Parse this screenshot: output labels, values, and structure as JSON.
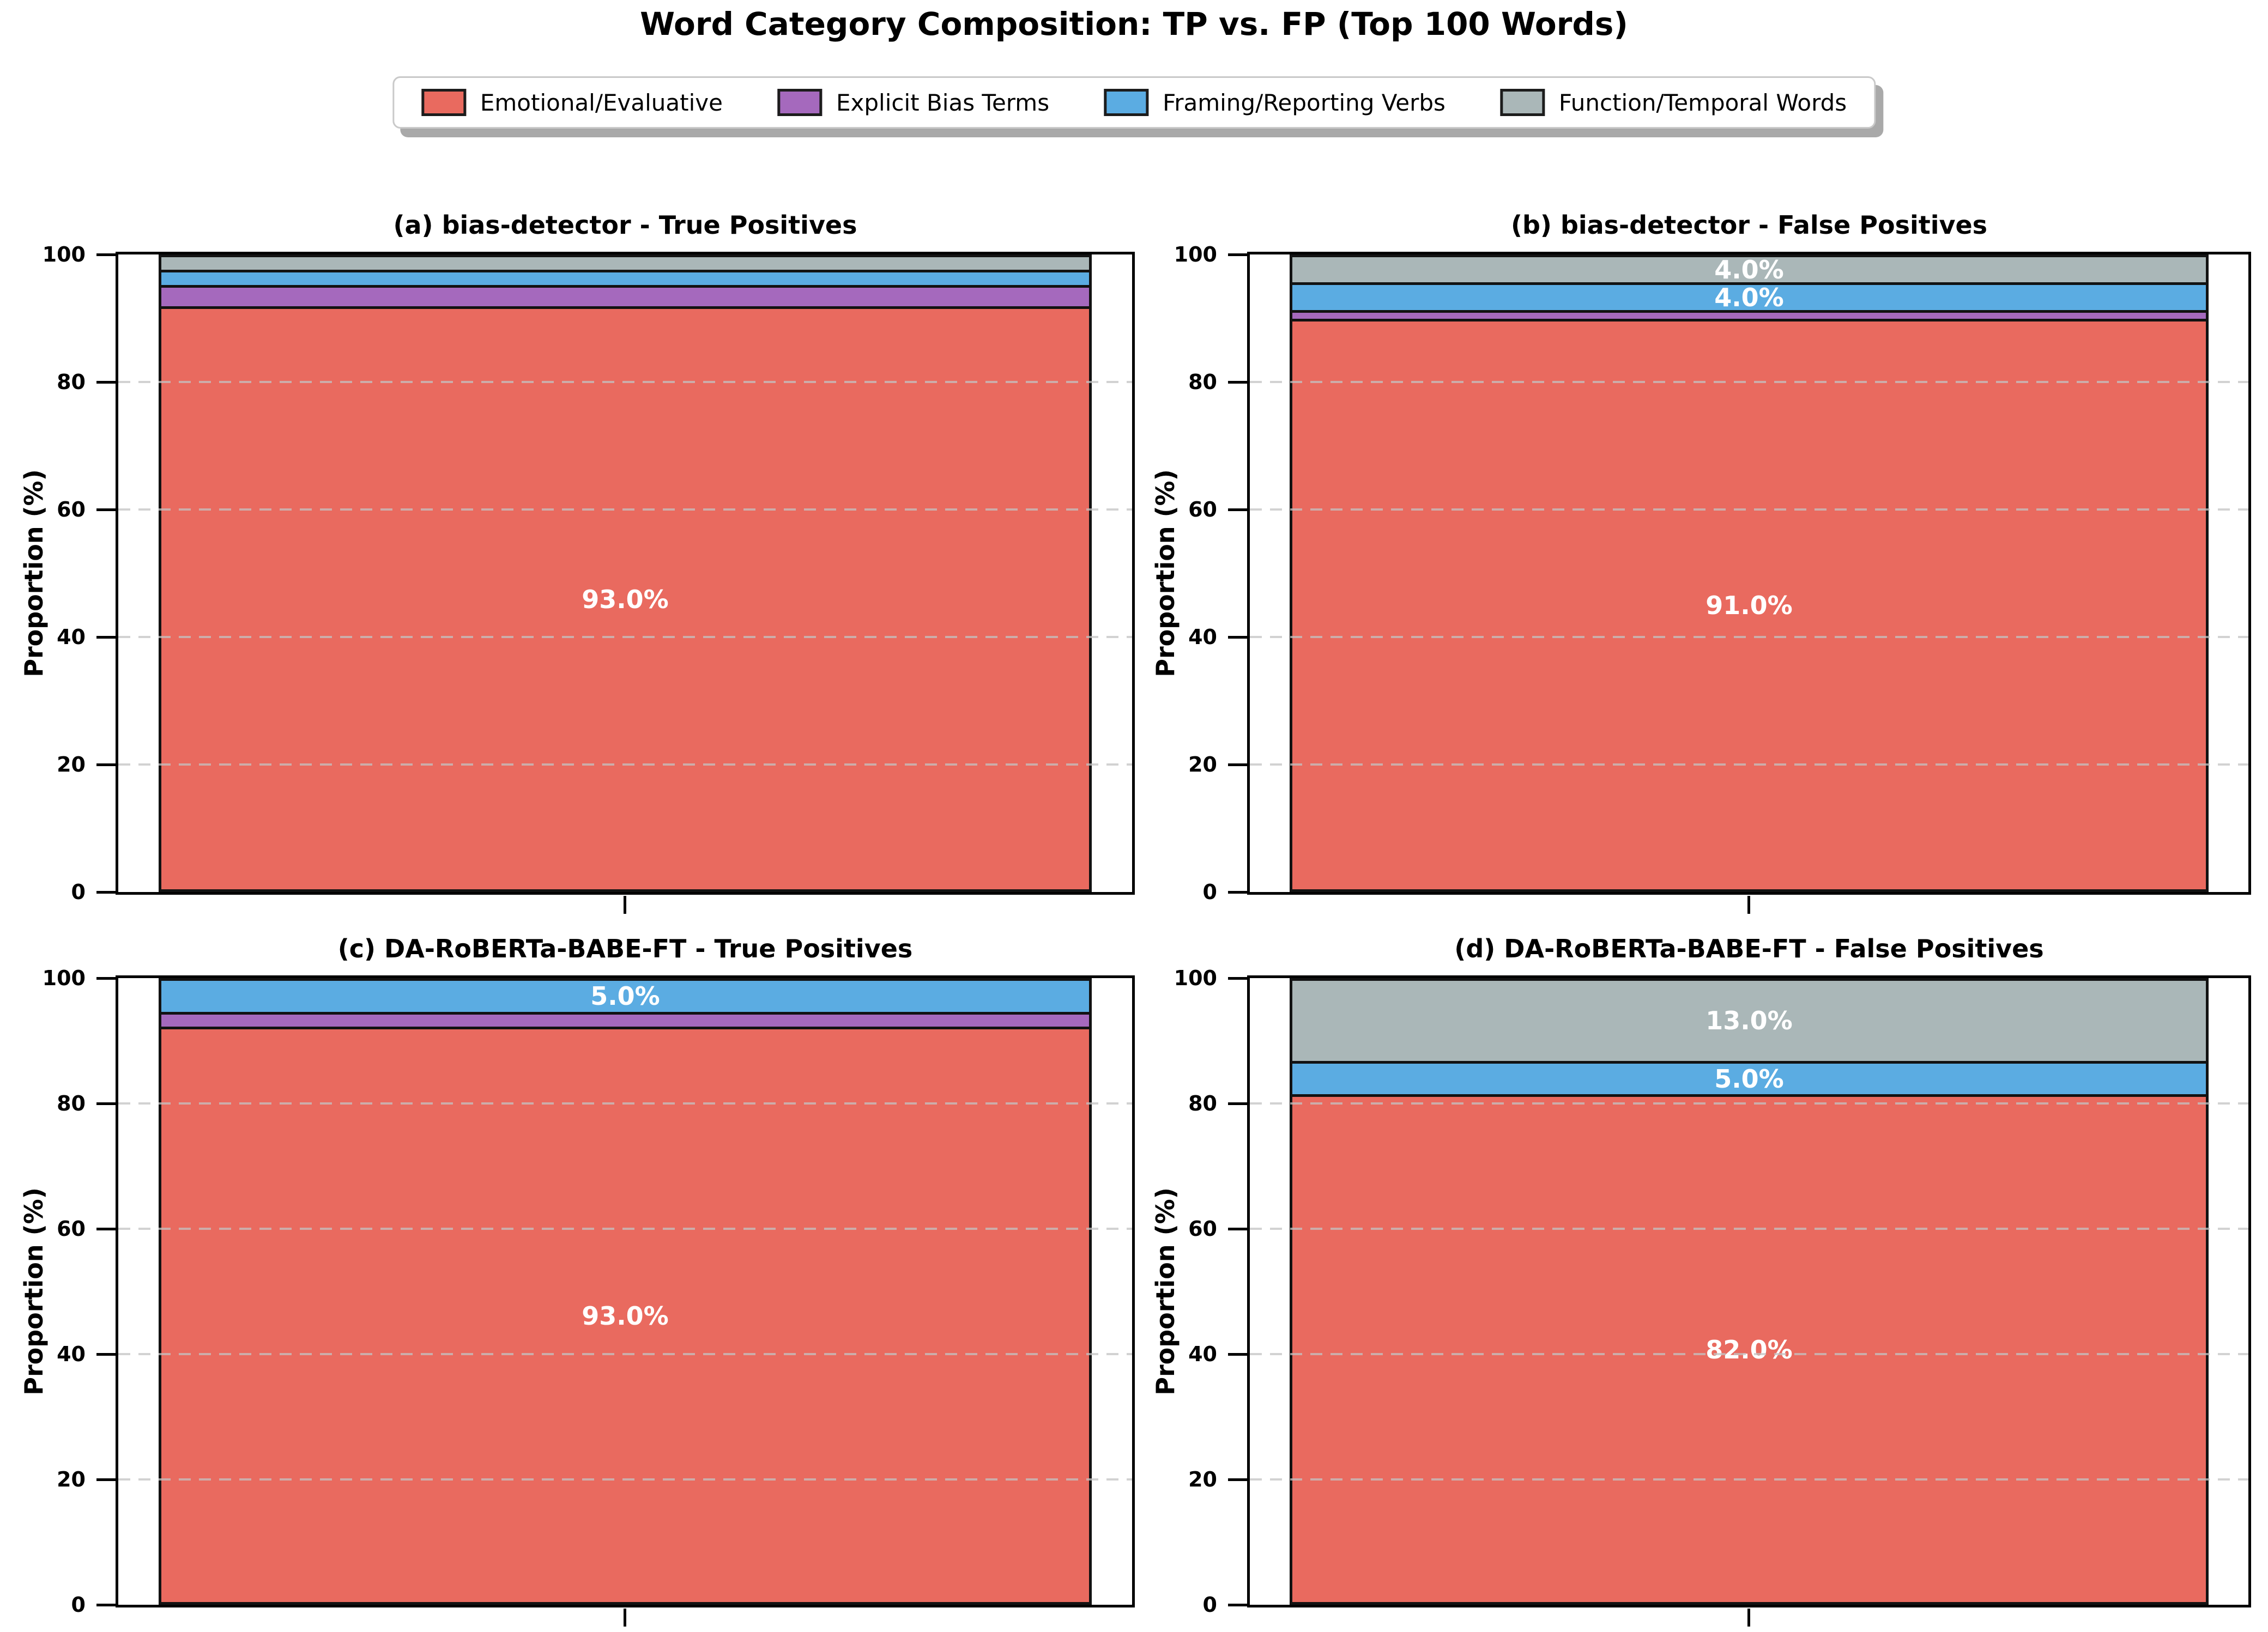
{
  "page_title": "Word Category Composition: TP vs. FP (Top 100 Words)",
  "legend": {
    "position": "top center",
    "entries": [
      {
        "label": "Emotional/Evaluative",
        "color": "#e96a5f",
        "swatch": "legend-swatch-emotional"
      },
      {
        "label": "Explicit Bias Terms",
        "color": "#a569bd",
        "swatch": "legend-swatch-explicit-bias"
      },
      {
        "label": "Framing/Reporting Verbs",
        "color": "#5bace2",
        "swatch": "legend-swatch-framing"
      },
      {
        "label": "Function/Temporal Words",
        "color": "#aab7b8",
        "swatch": "legend-swatch-function"
      }
    ]
  },
  "axes": {
    "ylabel": "Proportion (%)",
    "ylim": [
      0,
      100
    ],
    "yticks": [
      0,
      20,
      40,
      60,
      80,
      100
    ],
    "grid_values": [
      20,
      40,
      60,
      80
    ],
    "grid_style": "dashed horizontal, light gray, drawn above bars",
    "bar_edge_color": "#121212",
    "bar_label_color": "#ffffff"
  },
  "chart_data": [
    {
      "panel": "a",
      "type": "bar",
      "stacked": true,
      "title": "(a) bias-detector - True Positives",
      "ylim": [
        0,
        100
      ],
      "segments": [
        {
          "category": "Emotional/Evaluative",
          "value": 93.0,
          "shown_label": "93.0%"
        },
        {
          "category": "Explicit Bias Terms",
          "value": 3.0,
          "shown_label": ""
        },
        {
          "category": "Framing/Reporting Verbs",
          "value": 2.0,
          "shown_label": ""
        },
        {
          "category": "Function/Temporal Words",
          "value": 2.0,
          "shown_label": ""
        }
      ]
    },
    {
      "panel": "b",
      "type": "bar",
      "stacked": true,
      "title": "(b) bias-detector - False Positives",
      "ylim": [
        0,
        100
      ],
      "segments": [
        {
          "category": "Emotional/Evaluative",
          "value": 91.0,
          "shown_label": "91.0%"
        },
        {
          "category": "Explicit Bias Terms",
          "value": 1.0,
          "shown_label": ""
        },
        {
          "category": "Framing/Reporting Verbs",
          "value": 4.0,
          "shown_label": "4.0%"
        },
        {
          "category": "Function/Temporal Words",
          "value": 4.0,
          "shown_label": "4.0%"
        }
      ]
    },
    {
      "panel": "c",
      "type": "bar",
      "stacked": true,
      "title": "(c) DA-RoBERTa-BABE-FT - True Positives",
      "ylim": [
        0,
        100
      ],
      "segments": [
        {
          "category": "Emotional/Evaluative",
          "value": 93.0,
          "shown_label": "93.0%"
        },
        {
          "category": "Explicit Bias Terms",
          "value": 2.0,
          "shown_label": ""
        },
        {
          "category": "Framing/Reporting Verbs",
          "value": 5.0,
          "shown_label": "5.0%"
        },
        {
          "category": "Function/Temporal Words",
          "value": 0.0,
          "shown_label": ""
        }
      ]
    },
    {
      "panel": "d",
      "type": "bar",
      "stacked": true,
      "title": "(d) DA-RoBERTa-BABE-FT - False Positives",
      "ylim": [
        0,
        100
      ],
      "segments": [
        {
          "category": "Emotional/Evaluative",
          "value": 82.0,
          "shown_label": "82.0%"
        },
        {
          "category": "Explicit Bias Terms",
          "value": 0.0,
          "shown_label": ""
        },
        {
          "category": "Framing/Reporting Verbs",
          "value": 5.0,
          "shown_label": "5.0%"
        },
        {
          "category": "Function/Temporal Words",
          "value": 13.0,
          "shown_label": "13.0%"
        }
      ]
    }
  ]
}
